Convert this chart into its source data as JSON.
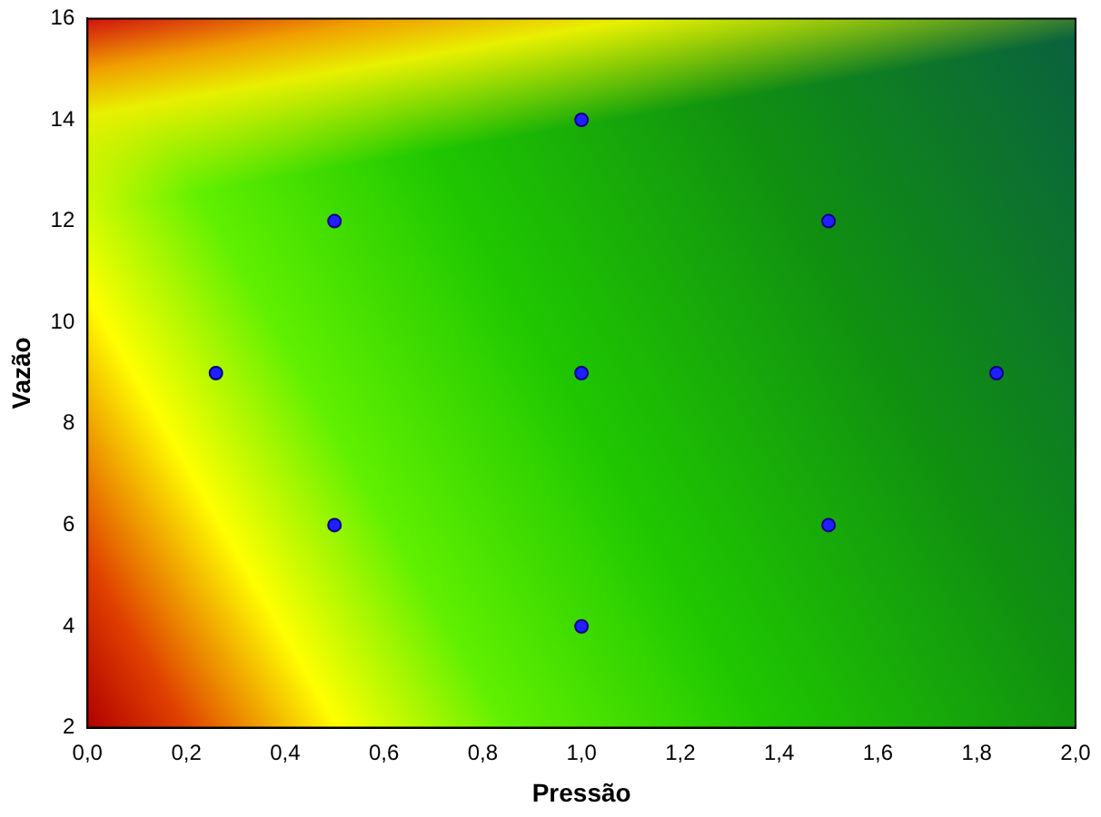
{
  "chart_data": {
    "type": "scatter",
    "xlabel": "Pressão",
    "ylabel": "Vazão",
    "x": [
      0.26,
      0.5,
      0.5,
      1.0,
      1.0,
      1.0,
      1.5,
      1.5,
      1.84
    ],
    "values": [
      9,
      12,
      6,
      14,
      9,
      4,
      12,
      6,
      9
    ],
    "color": "#1f1fff",
    "marker": "circle",
    "grid": false,
    "legend": false,
    "xlim": [
      0,
      2
    ],
    "ylim": [
      2,
      16
    ],
    "xticks": [
      {
        "value": 0,
        "label": "0,0"
      },
      {
        "value": 0.2,
        "label": "0,2"
      },
      {
        "value": 0.4,
        "label": "0,4"
      },
      {
        "value": 0.6,
        "label": "0,6"
      },
      {
        "value": 0.8,
        "label": "0,8"
      },
      {
        "value": 1,
        "label": "1,0"
      },
      {
        "value": 1.2,
        "label": "1,2"
      },
      {
        "value": 1.4,
        "label": "1,4"
      },
      {
        "value": 1.6,
        "label": "1,6"
      },
      {
        "value": 1.8,
        "label": "1,8"
      },
      {
        "value": 2,
        "label": "2,0"
      }
    ],
    "yticks": [
      2,
      4,
      6,
      8,
      10,
      12,
      14,
      16
    ]
  }
}
